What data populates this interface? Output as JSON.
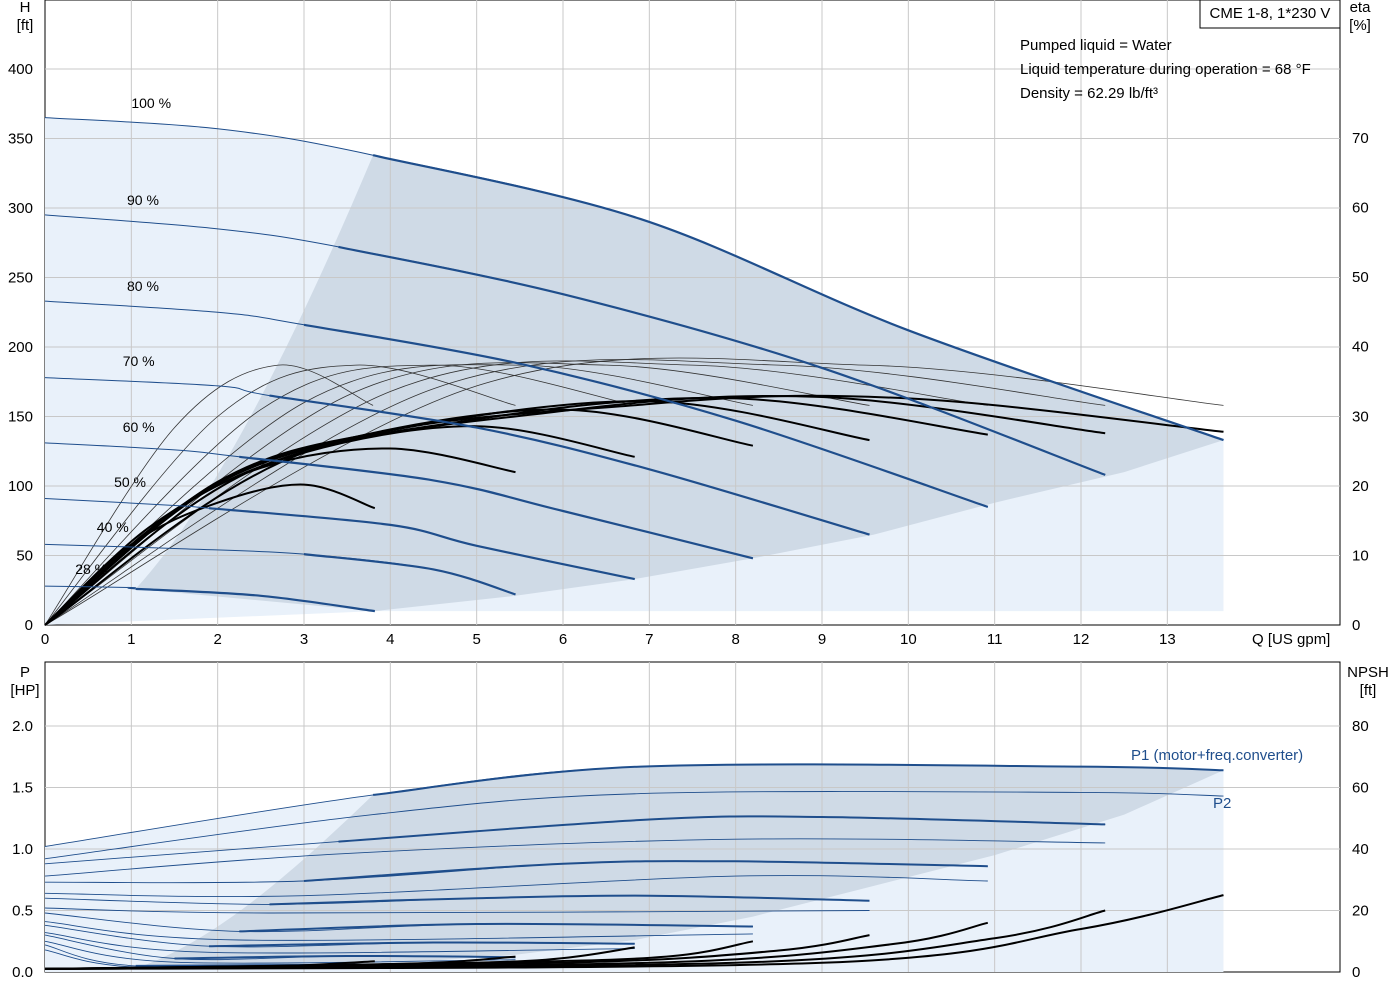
{
  "chart_data": [
    {
      "type": "line",
      "title": "CME 1-8, 1*230 V",
      "xlabel": "Q [US gpm]",
      "ylabel": "H",
      "ylabel_unit": "[ft]",
      "y2label": "eta",
      "y2label_unit": "[%]",
      "xlim": [
        0,
        15
      ],
      "ylim": [
        0,
        400
      ],
      "y2lim": [
        0,
        80
      ],
      "x_ticks": [
        "0",
        "1",
        "2",
        "3",
        "4",
        "5",
        "6",
        "7",
        "8",
        "9",
        "10",
        "11",
        "12",
        "13"
      ],
      "y_ticks": [
        "0",
        "50",
        "100",
        "150",
        "200",
        "250",
        "300",
        "350",
        "400"
      ],
      "y2_ticks": [
        "0",
        "10",
        "20",
        "30",
        "40",
        "50",
        "60",
        "70"
      ],
      "grid": true,
      "info": [
        "Pumped liquid = Water",
        "Liquid temperature during operation = 68 °F",
        "Density = 62.29 lb/ft³"
      ],
      "head_curves": [
        {
          "label": "100 %",
          "points": [
            [
              0,
              365
            ],
            [
              2,
              357
            ],
            [
              3.8,
              338
            ],
            [
              6.9,
              292
            ],
            [
              10,
              212
            ],
            [
              13.65,
              133
            ]
          ]
        },
        {
          "label": "90 %",
          "points": [
            [
              0,
              295
            ],
            [
              2,
              285
            ],
            [
              3.4,
              272
            ],
            [
              6,
              238
            ],
            [
              9,
              185
            ],
            [
              12.28,
              108
            ]
          ]
        },
        {
          "label": "80 %",
          "points": [
            [
              0,
              233
            ],
            [
              2,
              225
            ],
            [
              3,
              216
            ],
            [
              5.5,
              188
            ],
            [
              8,
              147
            ],
            [
              10.92,
              85
            ]
          ]
        },
        {
          "label": "70 %",
          "points": [
            [
              0,
              178
            ],
            [
              2,
              172
            ],
            [
              2.6,
              165
            ],
            [
              5,
              142
            ],
            [
              7,
              112
            ],
            [
              9.55,
              65
            ]
          ]
        },
        {
          "label": "60 %",
          "points": [
            [
              0,
              131
            ],
            [
              1.5,
              126
            ],
            [
              2.25,
              121
            ],
            [
              4.5,
              104
            ],
            [
              6,
              82
            ],
            [
              8.2,
              48
            ]
          ]
        },
        {
          "label": "50 %",
          "points": [
            [
              0,
              91
            ],
            [
              1.5,
              86
            ],
            [
              1.9,
              84
            ],
            [
              4,
              72
            ],
            [
              5,
              57
            ],
            [
              6.83,
              33
            ]
          ]
        },
        {
          "label": "40 %",
          "points": [
            [
              0,
              58
            ],
            [
              1.5,
              55
            ],
            [
              3,
              51
            ],
            [
              4.5,
              40
            ],
            [
              5.45,
              22
            ]
          ]
        },
        {
          "label": "28 %",
          "points": [
            [
              0,
              28
            ],
            [
              1,
              27
            ],
            [
              1.05,
              26
            ],
            [
              2.5,
              21
            ],
            [
              3.82,
              10
            ]
          ]
        }
      ],
      "efficiency_curves": [
        {
          "points": [
            [
              0,
              0
            ],
            [
              1,
              58
            ],
            [
              2,
              88
            ],
            [
              3,
              101
            ],
            [
              3.82,
              84
            ]
          ]
        },
        {
          "points": [
            [
              0,
              0
            ],
            [
              1.2,
              70
            ],
            [
              2.5,
              113
            ],
            [
              4,
              127
            ],
            [
              5.45,
              110
            ]
          ]
        },
        {
          "points": [
            [
              0,
              0
            ],
            [
              1.5,
              82
            ],
            [
              3,
              124
            ],
            [
              5,
              143
            ],
            [
              6.83,
              121
            ]
          ]
        },
        {
          "points": [
            [
              0,
              0
            ],
            [
              1.8,
              95
            ],
            [
              3.5,
              134
            ],
            [
              6,
              155
            ],
            [
              8.2,
              129
            ]
          ]
        },
        {
          "points": [
            [
              0,
              0
            ],
            [
              2,
              103
            ],
            [
              4,
              140
            ],
            [
              7,
              161
            ],
            [
              9.55,
              133
            ]
          ]
        },
        {
          "points": [
            [
              0,
              0
            ],
            [
              2.2,
              108
            ],
            [
              5,
              148
            ],
            [
              8,
              163
            ],
            [
              10.92,
              137
            ]
          ]
        },
        {
          "points": [
            [
              0,
              0
            ],
            [
              2.5,
              114
            ],
            [
              6,
              154
            ],
            [
              9,
              164
            ],
            [
              12.28,
              138
            ]
          ]
        },
        {
          "points": [
            [
              0,
              0
            ],
            [
              3,
              124
            ],
            [
              7,
              159
            ],
            [
              10,
              163
            ],
            [
              13.65,
              139
            ]
          ]
        }
      ],
      "efficiency_curves_thin": [
        {
          "points": [
            [
              0,
              0
            ],
            [
              1.5,
              142
            ],
            [
              2.7,
              187
            ],
            [
              3.8,
              158
            ]
          ]
        },
        {
          "points": [
            [
              0,
              0
            ],
            [
              2,
              150
            ],
            [
              3.6,
              187
            ],
            [
              5.45,
              158
            ]
          ]
        },
        {
          "points": [
            [
              0,
              0
            ],
            [
              2.5,
              155
            ],
            [
              4.5,
              187
            ],
            [
              6.83,
              158
            ]
          ]
        },
        {
          "points": [
            [
              0,
              0
            ],
            [
              3,
              160
            ],
            [
              5.5,
              187
            ],
            [
              8.2,
              158
            ]
          ]
        },
        {
          "points": [
            [
              0,
              0
            ],
            [
              3.5,
              165
            ],
            [
              6.5,
              187
            ],
            [
              9.55,
              158
            ]
          ]
        },
        {
          "points": [
            [
              0,
              0
            ],
            [
              4,
              168
            ],
            [
              7.5,
              187
            ],
            [
              10.92,
              158
            ]
          ]
        },
        {
          "points": [
            [
              0,
              0
            ],
            [
              4.5,
              170
            ],
            [
              8.5,
              187
            ],
            [
              12.28,
              158
            ]
          ]
        },
        {
          "points": [
            [
              0,
              0
            ],
            [
              5,
              172
            ],
            [
              9.5,
              187
            ],
            [
              13.65,
              158
            ]
          ]
        }
      ]
    },
    {
      "type": "line",
      "ylabel": "P",
      "ylabel_unit": "[HP]",
      "y2label": "NPSH",
      "y2label_unit": "[ft]",
      "xlim": [
        0,
        15
      ],
      "ylim": [
        0,
        2.0
      ],
      "y2lim": [
        0,
        80
      ],
      "y_ticks": [
        "0.0",
        "0.5",
        "1.0",
        "1.5",
        "2.0"
      ],
      "y2_ticks": [
        "0",
        "20",
        "40",
        "60",
        "80"
      ],
      "grid": true,
      "series_labels": [
        "P1 (motor+freq.converter)",
        "P2"
      ],
      "p1_curves": [
        {
          "points": [
            [
              0,
              1.02
            ],
            [
              3.8,
              1.44
            ],
            [
              6.9,
              1.67
            ],
            [
              12,
              1.67
            ],
            [
              13.65,
              1.64
            ]
          ]
        },
        {
          "points": [
            [
              0,
              0.88
            ],
            [
              3.4,
              1.06
            ],
            [
              7,
              1.24
            ],
            [
              9,
              1.26
            ],
            [
              12.28,
              1.2
            ]
          ]
        },
        {
          "points": [
            [
              0,
              0.73
            ],
            [
              3,
              0.74
            ],
            [
              6,
              0.88
            ],
            [
              8,
              0.9
            ],
            [
              10.92,
              0.86
            ]
          ]
        },
        {
          "points": [
            [
              0,
              0.6
            ],
            [
              2.6,
              0.55
            ],
            [
              5,
              0.6
            ],
            [
              7,
              0.62
            ],
            [
              9.55,
              0.58
            ]
          ]
        },
        {
          "points": [
            [
              0,
              0.48
            ],
            [
              2.25,
              0.33
            ],
            [
              5,
              0.39
            ],
            [
              8.2,
              0.37
            ]
          ]
        },
        {
          "points": [
            [
              0,
              0.38
            ],
            [
              1.9,
              0.21
            ],
            [
              4.5,
              0.24
            ],
            [
              6.83,
              0.23
            ]
          ]
        },
        {
          "points": [
            [
              0,
              0.3
            ],
            [
              1.5,
              0.11
            ],
            [
              3.5,
              0.13
            ],
            [
              5.45,
              0.12
            ]
          ]
        },
        {
          "points": [
            [
              0,
              0.22
            ],
            [
              1.05,
              0.05
            ],
            [
              3.82,
              0.06
            ]
          ]
        }
      ],
      "p2_curves": [
        {
          "points": [
            [
              0,
              0.92
            ],
            [
              3.8,
              1.28
            ],
            [
              6.9,
              1.45
            ],
            [
              12,
              1.46
            ],
            [
              13.65,
              1.43
            ]
          ]
        },
        {
          "points": [
            [
              0,
              0.78
            ],
            [
              3.4,
              0.96
            ],
            [
              8,
              1.08
            ],
            [
              12.28,
              1.05
            ]
          ]
        },
        {
          "points": [
            [
              0,
              0.64
            ],
            [
              3,
              0.62
            ],
            [
              8,
              0.78
            ],
            [
              10.92,
              0.74
            ]
          ]
        },
        {
          "points": [
            [
              0,
              0.52
            ],
            [
              2.6,
              0.48
            ],
            [
              9.55,
              0.5
            ]
          ]
        },
        {
          "points": [
            [
              0,
              0.41
            ],
            [
              2.25,
              0.26
            ],
            [
              8.2,
              0.31
            ]
          ]
        },
        {
          "points": [
            [
              0,
              0.32
            ],
            [
              1.9,
              0.16
            ],
            [
              6.83,
              0.19
            ]
          ]
        },
        {
          "points": [
            [
              0,
              0.25
            ],
            [
              1.5,
              0.08
            ],
            [
              5.45,
              0.1
            ]
          ]
        },
        {
          "points": [
            [
              0,
              0.18
            ],
            [
              1.05,
              0.04
            ],
            [
              3.82,
              0.05
            ]
          ]
        }
      ],
      "npsh_curves": [
        {
          "points": [
            [
              0,
              1
            ],
            [
              2,
              1.5
            ],
            [
              3,
              2.2
            ],
            [
              3.82,
              3.5
            ]
          ]
        },
        {
          "points": [
            [
              0,
              1
            ],
            [
              3,
              2
            ],
            [
              4.5,
              3
            ],
            [
              5.45,
              5
            ]
          ]
        },
        {
          "points": [
            [
              0,
              1
            ],
            [
              4,
              2.5
            ],
            [
              5.8,
              4
            ],
            [
              6.83,
              8
            ]
          ]
        },
        {
          "points": [
            [
              0,
              1
            ],
            [
              5,
              3
            ],
            [
              7.2,
              5
            ],
            [
              8.2,
              10
            ]
          ]
        },
        {
          "points": [
            [
              0,
              1
            ],
            [
              6,
              3
            ],
            [
              8.5,
              7
            ],
            [
              9.55,
              12
            ]
          ]
        },
        {
          "points": [
            [
              0,
              1
            ],
            [
              7,
              3
            ],
            [
              9.8,
              9
            ],
            [
              10.92,
              16
            ]
          ]
        },
        {
          "points": [
            [
              0,
              1
            ],
            [
              8,
              3
            ],
            [
              11,
              11
            ],
            [
              12.28,
              20
            ]
          ]
        },
        {
          "points": [
            [
              0,
              1
            ],
            [
              9,
              3
            ],
            [
              12,
              14
            ],
            [
              13.65,
              25
            ]
          ]
        }
      ]
    }
  ]
}
